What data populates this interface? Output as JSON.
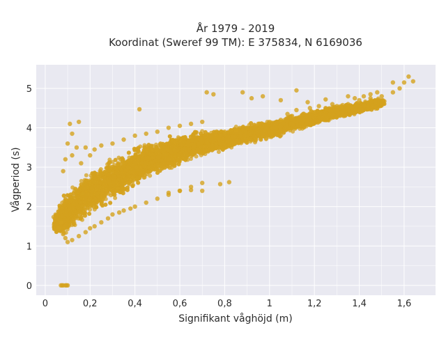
{
  "chart_data": {
    "type": "scatter",
    "title_line1": "År 1979 - 2019",
    "title_line2": "Koordinat (Sweref 99 TM): E 375834, N 6169036",
    "xlabel": "Signifikant våghöjd (m)",
    "ylabel": "Vågperiod (s)",
    "xlim": [
      -0.04,
      1.74
    ],
    "ylim": [
      -0.25,
      5.6
    ],
    "x_ticks": [
      0,
      0.2,
      0.4,
      0.6,
      0.8,
      1,
      1.2,
      1.4,
      1.6
    ],
    "x_tick_labels": [
      "0",
      "0,2",
      "0,4",
      "0,6",
      "0,8",
      "1",
      "1,2",
      "1,4",
      "1,6"
    ],
    "y_ticks": [
      0,
      1,
      2,
      3,
      4,
      5
    ],
    "y_tick_labels": [
      "0",
      "1",
      "2",
      "3",
      "4",
      "5"
    ],
    "grid": true,
    "colors": {
      "points": "#D4A21E",
      "background": "#E9E9F1",
      "grid": "#FFFFFF"
    },
    "points": [
      [
        0.07,
        0.0
      ],
      [
        0.08,
        0.0
      ],
      [
        0.09,
        0.0
      ],
      [
        0.1,
        0.0
      ],
      [
        0.075,
        0.0
      ],
      [
        0.095,
        0.0
      ],
      [
        0.05,
        1.38
      ],
      [
        0.06,
        1.45
      ],
      [
        0.07,
        1.6
      ],
      [
        0.08,
        1.3
      ],
      [
        0.09,
        1.2
      ],
      [
        0.1,
        1.1
      ],
      [
        0.12,
        1.15
      ],
      [
        0.15,
        1.25
      ],
      [
        0.18,
        1.35
      ],
      [
        0.2,
        1.45
      ],
      [
        0.22,
        1.5
      ],
      [
        0.25,
        1.6
      ],
      [
        0.28,
        1.7
      ],
      [
        0.3,
        1.8
      ],
      [
        0.33,
        1.85
      ],
      [
        0.35,
        1.9
      ],
      [
        0.38,
        1.95
      ],
      [
        0.4,
        2.0
      ],
      [
        0.45,
        2.1
      ],
      [
        0.5,
        2.2
      ],
      [
        0.55,
        2.3
      ],
      [
        0.6,
        2.4
      ],
      [
        0.65,
        2.5
      ],
      [
        0.7,
        2.6
      ],
      [
        0.08,
        2.9
      ],
      [
        0.09,
        3.2
      ],
      [
        0.1,
        3.6
      ],
      [
        0.12,
        3.85
      ],
      [
        0.11,
        4.1
      ],
      [
        0.15,
        4.15
      ],
      [
        0.12,
        3.3
      ],
      [
        0.14,
        3.5
      ],
      [
        0.16,
        3.1
      ],
      [
        0.18,
        3.5
      ],
      [
        0.2,
        3.3
      ],
      [
        0.22,
        3.45
      ],
      [
        0.25,
        3.55
      ],
      [
        0.3,
        3.6
      ],
      [
        0.35,
        3.7
      ],
      [
        0.4,
        3.8
      ],
      [
        0.45,
        3.85
      ],
      [
        0.5,
        3.9
      ],
      [
        0.55,
        4.0
      ],
      [
        0.6,
        4.05
      ],
      [
        0.65,
        4.1
      ],
      [
        0.7,
        4.15
      ],
      [
        0.42,
        4.47
      ],
      [
        0.72,
        4.9
      ],
      [
        0.75,
        4.85
      ],
      [
        0.88,
        4.9
      ],
      [
        0.6,
        2.4
      ],
      [
        0.65,
        2.42
      ],
      [
        0.7,
        2.4
      ],
      [
        0.78,
        2.57
      ],
      [
        0.82,
        2.62
      ],
      [
        0.55,
        2.35
      ],
      [
        0.8,
        3.9
      ],
      [
        0.85,
        3.95
      ],
      [
        0.9,
        4.0
      ],
      [
        0.95,
        4.1
      ],
      [
        1.0,
        4.15
      ],
      [
        1.05,
        4.2
      ],
      [
        1.1,
        4.3
      ],
      [
        1.15,
        4.35
      ],
      [
        1.2,
        4.4
      ],
      [
        1.25,
        4.5
      ],
      [
        1.3,
        4.55
      ],
      [
        1.35,
        4.6
      ],
      [
        1.4,
        4.7
      ],
      [
        1.45,
        4.75
      ],
      [
        1.5,
        4.8
      ],
      [
        1.55,
        4.9
      ],
      [
        1.58,
        5.0
      ],
      [
        1.6,
        5.15
      ],
      [
        1.62,
        5.3
      ],
      [
        1.64,
        5.18
      ],
      [
        1.55,
        5.15
      ],
      [
        1.48,
        4.9
      ],
      [
        1.42,
        4.8
      ],
      [
        1.38,
        4.75
      ],
      [
        1.32,
        4.55
      ],
      [
        1.28,
        4.6
      ],
      [
        1.22,
        4.55
      ],
      [
        1.18,
        4.5
      ],
      [
        1.12,
        4.45
      ],
      [
        1.08,
        4.35
      ],
      [
        0.92,
        4.75
      ],
      [
        0.97,
        4.8
      ],
      [
        1.05,
        4.7
      ],
      [
        1.12,
        4.95
      ],
      [
        1.17,
        4.65
      ],
      [
        1.25,
        4.72
      ],
      [
        1.35,
        4.8
      ],
      [
        1.45,
        4.85
      ]
    ],
    "bands": [
      {
        "center": [
          [
            0.05,
            1.55
          ],
          [
            0.1,
            1.85
          ],
          [
            0.2,
            2.35
          ],
          [
            0.3,
            2.7
          ],
          [
            0.4,
            3.0
          ],
          [
            0.5,
            3.25
          ],
          [
            0.6,
            3.45
          ],
          [
            0.7,
            3.6
          ],
          [
            0.8,
            3.7
          ],
          [
            0.9,
            3.85
          ],
          [
            1.0,
            3.95
          ],
          [
            1.1,
            4.1
          ],
          [
            1.2,
            4.25
          ],
          [
            1.3,
            4.4
          ],
          [
            1.4,
            4.5
          ],
          [
            1.5,
            4.65
          ]
        ],
        "halfwidth": [
          0.3,
          0.55,
          0.65,
          0.65,
          0.6,
          0.5,
          0.42,
          0.35,
          0.3,
          0.27,
          0.25,
          0.22,
          0.2,
          0.18,
          0.15,
          0.12
        ],
        "count": 9000
      }
    ]
  }
}
